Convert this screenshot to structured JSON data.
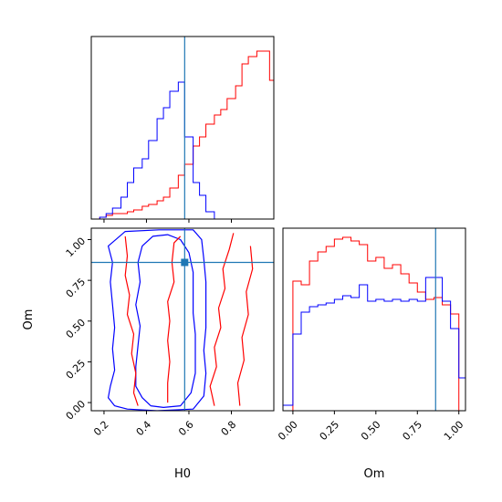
{
  "chart_data": {
    "type": "corner",
    "parameters": [
      "H0",
      "Om"
    ],
    "truths": {
      "H0": 0.58,
      "Om": 0.86
    },
    "colors": {
      "red": "#ff0000",
      "blue": "#0000ff",
      "truth": "#1f77b4"
    },
    "panels": [
      {
        "id": "hist-H0",
        "type": "histogram",
        "xlabel": "",
        "ylabel": "",
        "xlim": [
          0.14,
          1.0
        ],
        "ylim": [
          0,
          1.0
        ],
        "x_ticks": [
          0.2,
          0.4,
          0.6,
          0.8
        ],
        "x_tick_labels": [],
        "bins_edges": [
          0.14,
          0.18,
          0.21,
          0.24,
          0.28,
          0.31,
          0.34,
          0.38,
          0.41,
          0.45,
          0.48,
          0.51,
          0.55,
          0.58,
          0.62,
          0.65,
          0.68,
          0.72,
          0.75,
          0.78,
          0.82,
          0.85,
          0.88,
          0.92,
          0.95,
          0.98,
          1.0
        ],
        "series": [
          {
            "name": "",
            "color": "red",
            "values": [
              0.0,
              0.01,
              0.02,
              0.03,
              0.03,
              0.04,
              0.05,
              0.07,
              0.08,
              0.1,
              0.12,
              0.17,
              0.24,
              0.3,
              0.4,
              0.45,
              0.52,
              0.57,
              0.6,
              0.66,
              0.73,
              0.85,
              0.89,
              0.92,
              0.92,
              0.76
            ]
          },
          {
            "name": "",
            "color": "blue",
            "values": [
              0.0,
              0.01,
              0.03,
              0.06,
              0.12,
              0.2,
              0.28,
              0.33,
              0.43,
              0.55,
              0.61,
              0.7,
              0.75,
              0.45,
              0.2,
              0.13,
              0.04,
              0.0,
              0.0,
              0.0,
              0.0,
              0.0,
              0.0,
              0.0,
              0.0,
              0.0
            ]
          }
        ]
      },
      {
        "id": "contour-H0-Om",
        "type": "contour",
        "xlabel": "H0",
        "ylabel": "Om",
        "xlim": [
          0.14,
          1.0
        ],
        "ylim": [
          -0.05,
          1.07
        ],
        "x_ticks": [
          0.2,
          0.4,
          0.6,
          0.8
        ],
        "y_ticks": [
          0.0,
          0.25,
          0.5,
          0.75,
          1.0
        ],
        "x_tick_labels": [
          "0.2",
          "0.4",
          "0.6",
          "0.8"
        ],
        "y_tick_labels": [
          "0.00",
          "0.25",
          "0.50",
          "0.75",
          "1.00"
        ],
        "contours": [
          {
            "color": "blue",
            "points": [
              [
                0.42,
                -0.02
              ],
              [
                0.38,
                0.03
              ],
              [
                0.35,
                0.1
              ],
              [
                0.35,
                0.22
              ],
              [
                0.36,
                0.35
              ],
              [
                0.37,
                0.47
              ],
              [
                0.35,
                0.6
              ],
              [
                0.37,
                0.74
              ],
              [
                0.36,
                0.86
              ],
              [
                0.38,
                0.96
              ],
              [
                0.43,
                1.02
              ],
              [
                0.5,
                1.03
              ],
              [
                0.56,
                1.0
              ],
              [
                0.6,
                0.92
              ],
              [
                0.62,
                0.8
              ],
              [
                0.62,
                0.67
              ],
              [
                0.62,
                0.55
              ],
              [
                0.63,
                0.42
              ],
              [
                0.63,
                0.3
              ],
              [
                0.63,
                0.18
              ],
              [
                0.61,
                0.06
              ],
              [
                0.56,
                -0.02
              ],
              [
                0.48,
                -0.03
              ],
              [
                0.42,
                -0.02
              ]
            ]
          },
          {
            "color": "blue",
            "points": [
              [
                0.31,
                -0.04
              ],
              [
                0.25,
                -0.02
              ],
              [
                0.22,
                0.03
              ],
              [
                0.23,
                0.1
              ],
              [
                0.25,
                0.2
              ],
              [
                0.24,
                0.33
              ],
              [
                0.25,
                0.46
              ],
              [
                0.24,
                0.6
              ],
              [
                0.23,
                0.74
              ],
              [
                0.24,
                0.86
              ],
              [
                0.22,
                0.96
              ],
              [
                0.3,
                1.05
              ],
              [
                0.46,
                1.06
              ],
              [
                0.62,
                1.06
              ],
              [
                0.66,
                1.0
              ],
              [
                0.67,
                0.88
              ],
              [
                0.68,
                0.74
              ],
              [
                0.68,
                0.6
              ],
              [
                0.68,
                0.46
              ],
              [
                0.67,
                0.32
              ],
              [
                0.68,
                0.18
              ],
              [
                0.67,
                0.04
              ],
              [
                0.62,
                -0.04
              ],
              [
                0.45,
                -0.05
              ],
              [
                0.31,
                -0.04
              ]
            ]
          },
          {
            "color": "red",
            "points": [
              [
                0.5,
                0.0
              ],
              [
                0.5,
                0.12
              ],
              [
                0.51,
                0.25
              ],
              [
                0.5,
                0.38
              ],
              [
                0.51,
                0.5
              ],
              [
                0.5,
                0.62
              ],
              [
                0.53,
                0.74
              ],
              [
                0.52,
                0.86
              ],
              [
                0.53,
                0.98
              ],
              [
                0.56,
                1.02
              ]
            ]
          },
          {
            "color": "red",
            "points": [
              [
                0.3,
                1.02
              ],
              [
                0.31,
                0.9
              ],
              [
                0.3,
                0.78
              ],
              [
                0.32,
                0.66
              ],
              [
                0.31,
                0.54
              ],
              [
                0.34,
                0.42
              ],
              [
                0.33,
                0.3
              ],
              [
                0.35,
                0.18
              ],
              [
                0.34,
                0.06
              ],
              [
                0.36,
                -0.02
              ]
            ]
          },
          {
            "color": "red",
            "points": [
              [
                0.72,
                -0.02
              ],
              [
                0.7,
                0.1
              ],
              [
                0.73,
                0.22
              ],
              [
                0.72,
                0.34
              ],
              [
                0.75,
                0.46
              ],
              [
                0.74,
                0.58
              ],
              [
                0.77,
                0.7
              ],
              [
                0.76,
                0.82
              ],
              [
                0.79,
                0.94
              ],
              [
                0.81,
                1.04
              ]
            ]
          },
          {
            "color": "red",
            "points": [
              [
                0.84,
                -0.02
              ],
              [
                0.83,
                0.12
              ],
              [
                0.86,
                0.26
              ],
              [
                0.85,
                0.4
              ],
              [
                0.88,
                0.54
              ],
              [
                0.87,
                0.68
              ],
              [
                0.9,
                0.82
              ],
              [
                0.89,
                0.96
              ]
            ]
          }
        ]
      },
      {
        "id": "hist-Om",
        "type": "histogram",
        "xlabel": "Om",
        "ylabel": "",
        "xlim": [
          -0.06,
          1.04
        ],
        "ylim": [
          0,
          1.0
        ],
        "x_ticks": [
          0.0,
          0.25,
          0.5,
          0.75,
          1.0
        ],
        "x_tick_labels": [
          "0.00",
          "0.25",
          "0.50",
          "0.75",
          "1.00"
        ],
        "bins_edges": [
          -0.06,
          0.0,
          0.05,
          0.1,
          0.15,
          0.2,
          0.25,
          0.3,
          0.35,
          0.4,
          0.45,
          0.5,
          0.55,
          0.6,
          0.65,
          0.7,
          0.75,
          0.8,
          0.85,
          0.9,
          0.95,
          1.0,
          1.04
        ],
        "series": [
          {
            "name": "",
            "color": "red",
            "values": [
              0.0,
              0.71,
              0.69,
              0.82,
              0.87,
              0.9,
              0.94,
              0.95,
              0.93,
              0.91,
              0.82,
              0.84,
              0.78,
              0.8,
              0.75,
              0.7,
              0.65,
              0.61,
              0.62,
              0.58,
              0.53,
              0.0
            ]
          },
          {
            "name": "",
            "color": "blue",
            "values": [
              0.03,
              0.42,
              0.54,
              0.57,
              0.58,
              0.59,
              0.61,
              0.63,
              0.62,
              0.69,
              0.6,
              0.61,
              0.6,
              0.61,
              0.6,
              0.61,
              0.6,
              0.73,
              0.73,
              0.6,
              0.45,
              0.18
            ]
          }
        ]
      }
    ]
  }
}
